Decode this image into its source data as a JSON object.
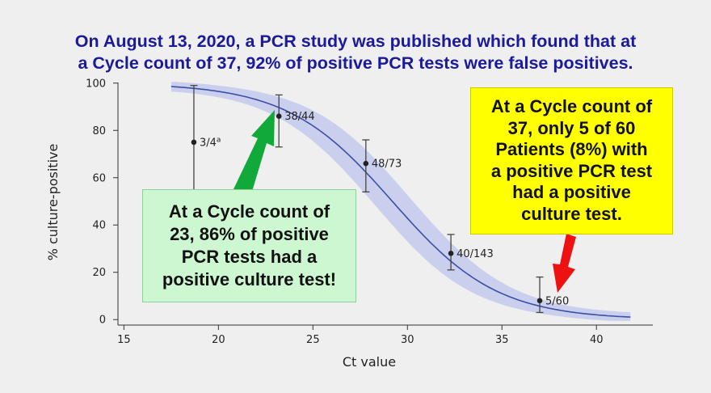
{
  "headline": {
    "line1": "On August 13, 2020, a PCR study was published which found that at",
    "line2": "a Cycle count of 37, 92% of positive PCR tests were false positives."
  },
  "callouts": {
    "green": {
      "lines": [
        "At a Cycle count of",
        "23, 86% of positive",
        "PCR tests had a",
        "positive culture test!"
      ],
      "color": "#ccf7d0",
      "arrow_color": "#11aa3a"
    },
    "yellow": {
      "lines": [
        "At a Cycle count of",
        "37, only 5 of 60",
        "Patients (8%) with",
        "a positive PCR test",
        "had a positive",
        "culture test."
      ],
      "color": "#ffff00",
      "arrow_color": "#ee1111"
    }
  },
  "chart_data": {
    "type": "scatter",
    "xlabel": "Ct value",
    "ylabel": "% culture-positive",
    "xlim": [
      14,
      42
    ],
    "ylim": [
      -3,
      103
    ],
    "xticks": [
      15,
      20,
      25,
      30,
      35,
      40
    ],
    "yticks": [
      0,
      20,
      40,
      60,
      80,
      100
    ],
    "grid": false,
    "points": [
      {
        "x": 18.7,
        "y": 75,
        "low": 28,
        "high": 99,
        "label": "3/4",
        "superscript": "a"
      },
      {
        "x": 23.2,
        "y": 86,
        "low": 73,
        "high": 95,
        "label": "38/44"
      },
      {
        "x": 27.8,
        "y": 66,
        "low": 54,
        "high": 76,
        "label": "48/73"
      },
      {
        "x": 32.3,
        "y": 28,
        "low": 21,
        "high": 36,
        "label": "40/143"
      },
      {
        "x": 37.0,
        "y": 8,
        "low": 3,
        "high": 18,
        "label": "5/60"
      }
    ],
    "fit": {
      "x_start": 17.5,
      "x_end": 41.8,
      "midpoint": 29.2,
      "slope": 0.36
    },
    "colors": {
      "fit_line": "#3c4fa8",
      "confidence_band": "#c3c9ec",
      "points": "#222222"
    }
  }
}
